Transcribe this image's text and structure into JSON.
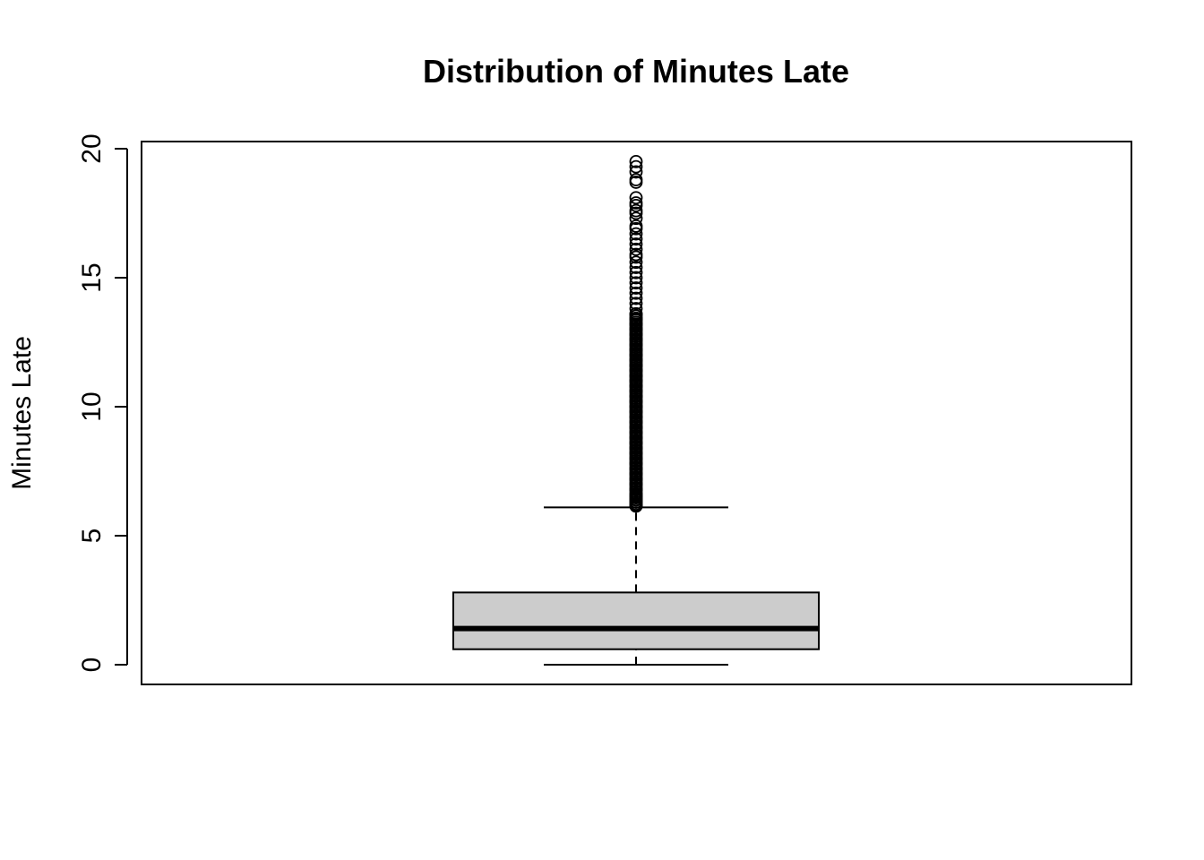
{
  "chart_data": {
    "type": "boxplot",
    "title": "Distribution of Minutes Late",
    "xlabel": "",
    "ylabel": "Minutes Late",
    "ylim": [
      -0.8,
      20.3
    ],
    "yticks": [
      0,
      5,
      10,
      15,
      20
    ],
    "ytick_labels": [
      "0",
      "5",
      "10",
      "15",
      "20"
    ],
    "grid": false,
    "box": {
      "min": 0,
      "q1": 0.6,
      "median": 1.4,
      "q3": 2.8,
      "whisker_high": 6.1,
      "fill_color": "#cccccc"
    },
    "outliers": [
      19.5,
      19.3,
      19.1,
      18.8,
      18.7,
      18.1,
      17.9,
      17.8,
      17.6,
      17.5,
      17.3,
      17.0,
      16.9,
      16.7,
      16.5,
      16.3,
      16.1,
      15.9,
      15.8,
      15.6,
      15.4,
      15.2,
      15.0,
      14.8,
      14.6,
      14.4,
      14.2,
      14.0,
      13.8,
      13.6,
      13.4,
      13.2,
      13.0,
      12.8,
      12.6,
      12.4,
      12.2,
      12.0,
      11.8,
      11.6,
      11.4,
      11.2,
      11.0,
      10.8,
      10.6,
      10.4,
      10.2,
      10.0,
      9.8,
      9.6,
      9.4,
      9.2,
      9.0,
      8.8,
      8.6,
      8.4,
      8.2,
      8.0,
      7.8,
      7.6,
      7.4,
      7.2,
      7.0,
      6.8,
      6.6,
      6.5,
      6.4,
      6.3,
      6.2,
      6.15
    ]
  }
}
